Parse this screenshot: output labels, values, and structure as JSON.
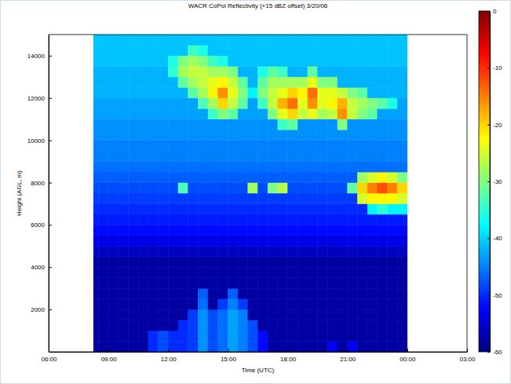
{
  "chart_data": {
    "type": "heatmap",
    "title": "WACR CoPol Reflectivity (+15 dBZ offset) 3/20/06",
    "x_label": "Time (UTC)",
    "y_label": "Height (AGL, m)",
    "xlim": [
      6,
      27
    ],
    "xticks": [
      {
        "value": 6,
        "label": "06:00"
      },
      {
        "value": 9,
        "label": "09:00"
      },
      {
        "value": 12,
        "label": "12:00"
      },
      {
        "value": 15,
        "label": "15:00"
      },
      {
        "value": 18,
        "label": "18:00"
      },
      {
        "value": 21,
        "label": "21:00"
      },
      {
        "value": 24,
        "label": "00:00"
      },
      {
        "value": 27,
        "label": "03:00"
      }
    ],
    "ylim": [
      0,
      15000
    ],
    "yticks": [
      2000,
      4000,
      6000,
      8000,
      10000,
      12000,
      14000
    ],
    "x_edges": [
      8.25,
      8.5,
      9,
      9.5,
      10,
      10.5,
      11,
      11.5,
      12,
      12.5,
      13,
      13.5,
      14,
      14.5,
      15,
      15.5,
      16,
      16.5,
      17,
      17.5,
      18,
      18.5,
      19,
      19.5,
      20,
      20.5,
      21,
      21.5,
      22,
      22.5,
      23,
      23.5,
      24
    ],
    "y_edges": [
      0,
      500,
      1000,
      1500,
      2000,
      2500,
      3000,
      3500,
      4000,
      4500,
      5000,
      5500,
      6000,
      6500,
      7000,
      7500,
      8000,
      8500,
      9000,
      9500,
      10000,
      10500,
      11000,
      11500,
      12000,
      12500,
      13000,
      13500,
      14000,
      14500,
      15000
    ],
    "cells": [
      [
        -58,
        -58,
        -58,
        -58,
        -58,
        -58,
        -50,
        -48,
        -50,
        -50,
        -49,
        -44,
        -48,
        -46,
        -43,
        -45,
        -48,
        -52,
        -58,
        -58,
        -58,
        -58,
        -58,
        -58,
        -53,
        -58,
        -53,
        -58,
        -58,
        -58,
        -58,
        -58
      ],
      [
        -58,
        -58,
        -58,
        -58,
        -58,
        -58,
        -50,
        -48,
        -50,
        -50,
        -49,
        -44,
        -48,
        -46,
        -43,
        -45,
        -48,
        -52,
        -58,
        -58,
        -58,
        -58,
        -58,
        -58,
        -58,
        -58,
        -58,
        -58,
        -58,
        -58,
        -58,
        -58
      ],
      [
        -58,
        -58,
        -58,
        -58,
        -58,
        -58,
        -58,
        -58,
        -58,
        -50,
        -49,
        -44,
        -48,
        -46,
        -43,
        -45,
        -48,
        -58,
        -58,
        -58,
        -58,
        -58,
        -58,
        -58,
        -58,
        -58,
        -58,
        -58,
        -58,
        -58,
        -58,
        -58
      ],
      [
        -58,
        -58,
        -58,
        -58,
        -58,
        -58,
        -58,
        -58,
        -58,
        -58,
        -49,
        -44,
        -48,
        -46,
        -43,
        -45,
        -58,
        -58,
        -58,
        -58,
        -58,
        -58,
        -58,
        -58,
        -58,
        -58,
        -58,
        -58,
        -58,
        -58,
        -58,
        -58
      ],
      [
        -58,
        -58,
        -58,
        -58,
        -58,
        -58,
        -58,
        -58,
        -58,
        -58,
        -58,
        -46,
        -58,
        -49,
        -45,
        -49,
        -58,
        -58,
        -58,
        -58,
        -58,
        -58,
        -58,
        -58,
        -58,
        -58,
        -58,
        -58,
        -58,
        -58,
        -58,
        -58
      ],
      [
        -58,
        -58,
        -58,
        -58,
        -58,
        -58,
        -58,
        -58,
        -58,
        -58,
        -58,
        -47,
        -58,
        -58,
        -47,
        -58,
        -58,
        -58,
        -58,
        -58,
        -58,
        -58,
        -58,
        -58,
        -58,
        -58,
        -58,
        -58,
        -58,
        -58,
        -58,
        -58
      ],
      [
        -58,
        -58,
        -58,
        -58,
        -58,
        -58,
        -58,
        -58,
        -58,
        -58,
        -58,
        -58,
        -58,
        -58,
        -58,
        -58,
        -58,
        -58,
        -58,
        -58,
        -58,
        -58,
        -58,
        -58,
        -58,
        -58,
        -58,
        -58,
        -58,
        -58,
        -58,
        -58
      ],
      [
        -58,
        -58,
        -58,
        -58,
        -58,
        -58,
        -58,
        -58,
        -58,
        -58,
        -58,
        -58,
        -58,
        -58,
        -58,
        -58,
        -58,
        -58,
        -58,
        -58,
        -58,
        -58,
        -58,
        -58,
        -58,
        -58,
        -58,
        -58,
        -58,
        -58,
        -58,
        -58
      ],
      [
        -58,
        -58,
        -58,
        -58,
        -58,
        -58,
        -58,
        -58,
        -58,
        -58,
        -58,
        -58,
        -58,
        -58,
        -58,
        -58,
        -58,
        -58,
        -58,
        -58,
        -58,
        -58,
        -58,
        -58,
        -58,
        -58,
        -58,
        -58,
        -58,
        -58,
        -58,
        -58
      ],
      [
        -56,
        -56,
        -56,
        -56,
        -56,
        -56,
        -56,
        -56,
        -56,
        -56,
        -56,
        -56,
        -56,
        -56,
        -56,
        -56,
        -56,
        -56,
        -56,
        -56,
        -56,
        -56,
        -56,
        -56,
        -56,
        -56,
        -56,
        -56,
        -56,
        -56,
        -56,
        -56
      ],
      [
        -54,
        -54,
        -54,
        -54,
        -54,
        -54,
        -54,
        -54,
        -54,
        -54,
        -54,
        -54,
        -54,
        -54,
        -54,
        -54,
        -54,
        -54,
        -54,
        -54,
        -54,
        -54,
        -54,
        -54,
        -54,
        -54,
        -54,
        -54,
        -54,
        -54,
        -54,
        -54
      ],
      [
        -52,
        -52,
        -52,
        -52,
        -52,
        -52,
        -52,
        -52,
        -52,
        -52,
        -52,
        -52,
        -52,
        -52,
        -52,
        -52,
        -52,
        -52,
        -52,
        -52,
        -52,
        -52,
        -52,
        -52,
        -52,
        -52,
        -52,
        -52,
        -52,
        -52,
        -52,
        -52
      ],
      [
        -51,
        -51,
        -51,
        -51,
        -51,
        -51,
        -51,
        -51,
        -51,
        -51,
        -51,
        -51,
        -51,
        -51,
        -51,
        -51,
        -51,
        -51,
        -51,
        -51,
        -51,
        -51,
        -51,
        -51,
        -51,
        -51,
        -51,
        -51,
        -51,
        -51,
        -51,
        -51
      ],
      [
        -50,
        -50,
        -50,
        -50,
        -50,
        -50,
        -50,
        -50,
        -50,
        -50,
        -50,
        -50,
        -50,
        -50,
        -50,
        -50,
        -50,
        -50,
        -50,
        -50,
        -50,
        -50,
        -50,
        -50,
        -50,
        -50,
        -50,
        -50,
        -38,
        -35,
        -38,
        -38
      ],
      [
        -49,
        -49,
        -49,
        -49,
        -49,
        -49,
        -49,
        -49,
        -49,
        -49,
        -49,
        -49,
        -49,
        -49,
        -49,
        -49,
        -49,
        -49,
        -49,
        -49,
        -49,
        -49,
        -49,
        -49,
        -49,
        -49,
        -49,
        -25,
        -22,
        -22,
        -22,
        -25
      ],
      [
        -48,
        -48,
        -48,
        -48,
        -48,
        -48,
        -48,
        -48,
        -48,
        -33,
        -48,
        -48,
        -48,
        -48,
        -48,
        -48,
        -28,
        -48,
        -30,
        -27,
        -48,
        -48,
        -48,
        -48,
        -48,
        -48,
        -32,
        -20,
        -15,
        -12,
        -15,
        -20
      ],
      [
        -47,
        -47,
        -47,
        -47,
        -47,
        -47,
        -47,
        -47,
        -47,
        -47,
        -47,
        -47,
        -47,
        -47,
        -47,
        -47,
        -47,
        -47,
        -47,
        -47,
        -47,
        -47,
        -47,
        -47,
        -47,
        -47,
        -47,
        -28,
        -25,
        -22,
        -25,
        -30
      ],
      [
        -46,
        -46,
        -46,
        -46,
        -46,
        -46,
        -46,
        -46,
        -46,
        -46,
        -46,
        -46,
        -46,
        -46,
        -46,
        -46,
        -46,
        -46,
        -46,
        -46,
        -46,
        -46,
        -46,
        -46,
        -46,
        -46,
        -46,
        -46,
        -46,
        -46,
        -46,
        -46
      ],
      [
        -45,
        -45,
        -45,
        -45,
        -45,
        -45,
        -45,
        -45,
        -45,
        -45,
        -45,
        -45,
        -45,
        -45,
        -45,
        -45,
        -45,
        -45,
        -45,
        -45,
        -45,
        -45,
        -45,
        -45,
        -45,
        -45,
        -45,
        -45,
        -45,
        -45,
        -45,
        -45
      ],
      [
        -45,
        -45,
        -45,
        -45,
        -45,
        -45,
        -45,
        -45,
        -45,
        -45,
        -45,
        -45,
        -45,
        -45,
        -45,
        -45,
        -45,
        -45,
        -45,
        -45,
        -45,
        -45,
        -45,
        -45,
        -45,
        -45,
        -45,
        -45,
        -45,
        -45,
        -45,
        -45
      ],
      [
        -44,
        -44,
        -44,
        -44,
        -44,
        -44,
        -44,
        -44,
        -44,
        -44,
        -44,
        -44,
        -44,
        -44,
        -44,
        -44,
        -44,
        -44,
        -44,
        -44,
        -44,
        -44,
        -44,
        -44,
        -44,
        -44,
        -44,
        -44,
        -44,
        -44,
        -44,
        -44
      ],
      [
        -44,
        -44,
        -44,
        -44,
        -44,
        -44,
        -44,
        -44,
        -44,
        -44,
        -44,
        -44,
        -44,
        -44,
        -44,
        -44,
        -44,
        -44,
        -44,
        -34,
        -32,
        -44,
        -44,
        -44,
        -44,
        -30,
        -44,
        -44,
        -44,
        -44,
        -44,
        -44
      ],
      [
        -43,
        -43,
        -43,
        -43,
        -43,
        -43,
        -43,
        -43,
        -43,
        -43,
        -43,
        -43,
        -34,
        -30,
        -32,
        -43,
        -43,
        -43,
        -30,
        -24,
        -20,
        -26,
        -24,
        -28,
        -26,
        -16,
        -26,
        -30,
        -32,
        -43,
        -43,
        -43
      ],
      [
        -43,
        -43,
        -43,
        -43,
        -43,
        -43,
        -43,
        -43,
        -43,
        -43,
        -43,
        -33,
        -28,
        -20,
        -26,
        -32,
        -43,
        -34,
        -26,
        -18,
        -14,
        -24,
        -16,
        -24,
        -22,
        -18,
        -26,
        -28,
        -30,
        -32,
        -36,
        -43
      ],
      [
        -42,
        -42,
        -42,
        -42,
        -42,
        -42,
        -42,
        -42,
        -42,
        -42,
        -32,
        -28,
        -22,
        -16,
        -24,
        -30,
        -38,
        -30,
        -26,
        -24,
        -20,
        -22,
        -14,
        -24,
        -24,
        -26,
        -30,
        -32,
        -42,
        -42,
        -42,
        -42
      ],
      [
        -42,
        -42,
        -42,
        -42,
        -42,
        -42,
        -42,
        -42,
        -42,
        -32,
        -28,
        -26,
        -24,
        -22,
        -26,
        -32,
        -42,
        -32,
        -28,
        -28,
        -28,
        -28,
        -24,
        -30,
        -30,
        -42,
        -42,
        -42,
        -42,
        -42,
        -42,
        -42
      ],
      [
        -42,
        -42,
        -42,
        -42,
        -42,
        -42,
        -42,
        -42,
        -35,
        -28,
        -26,
        -26,
        -28,
        -28,
        -30,
        -42,
        -42,
        -36,
        -32,
        -34,
        -42,
        -42,
        -32,
        -42,
        -42,
        -42,
        -42,
        -42,
        -42,
        -42,
        -42,
        -42
      ],
      [
        -41,
        -41,
        -41,
        -41,
        -41,
        -41,
        -41,
        -41,
        -36,
        -30,
        -28,
        -30,
        -34,
        -36,
        -41,
        -41,
        -41,
        -41,
        -41,
        -41,
        -41,
        -41,
        -41,
        -41,
        -41,
        -41,
        -41,
        -41,
        -41,
        -41,
        -41,
        -41
      ],
      [
        -41,
        -41,
        -41,
        -41,
        -41,
        -41,
        -41,
        -41,
        -41,
        -41,
        -34,
        -36,
        -41,
        -41,
        -41,
        -41,
        -41,
        -41,
        -41,
        -41,
        -41,
        -41,
        -41,
        -41,
        -41,
        -41,
        -41,
        -41,
        -41,
        -41,
        -41,
        -41
      ],
      [
        -41,
        -41,
        -41,
        -41,
        -41,
        -41,
        -41,
        -41,
        -41,
        -41,
        -41,
        -41,
        -41,
        -41,
        -41,
        -41,
        -41,
        -41,
        -41,
        -41,
        -41,
        -41,
        -41,
        -41,
        -41,
        -41,
        -41,
        -41,
        -41,
        -41,
        -41,
        -41
      ]
    ],
    "colorbar": {
      "range": [
        -60,
        0
      ],
      "ticks": [
        0,
        -10,
        -20,
        -30,
        -40,
        -50,
        -60
      ]
    }
  }
}
